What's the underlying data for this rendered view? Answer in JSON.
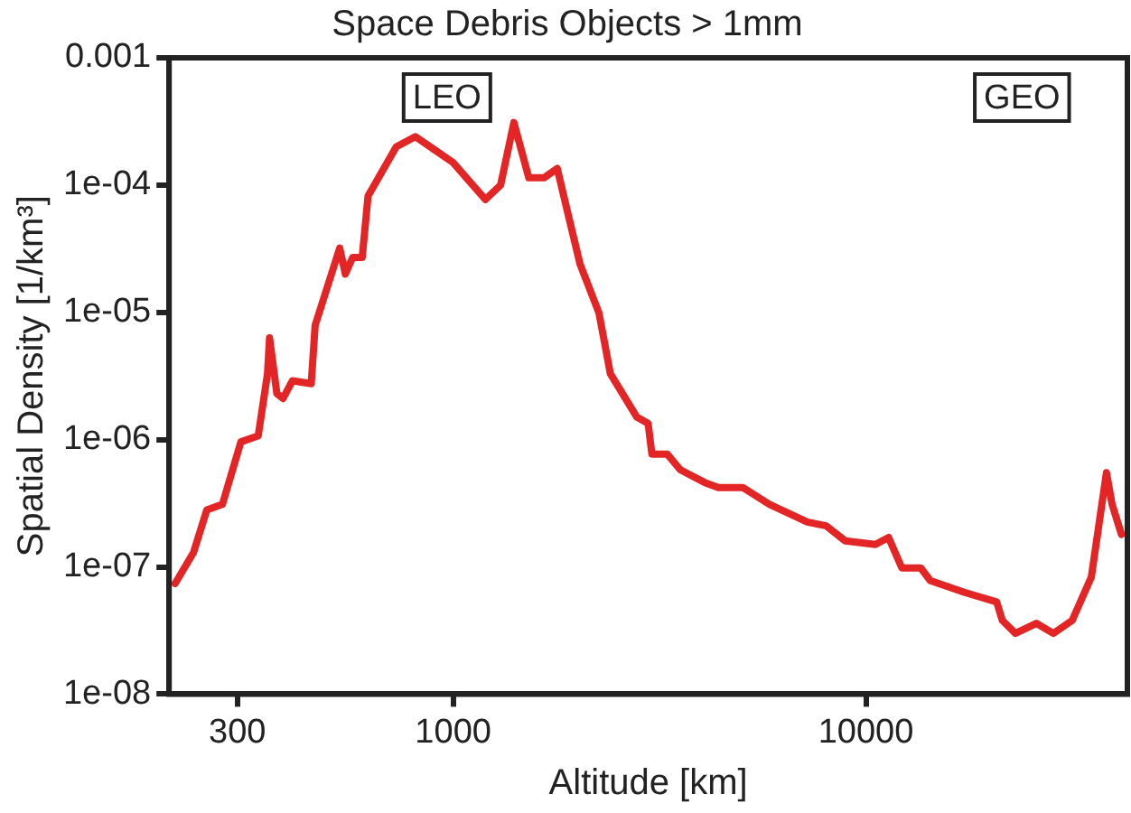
{
  "chart_data": {
    "type": "line",
    "title": "Space Debris Objects > 1mm",
    "xlabel": "Altitude [km]",
    "ylabel": "Spatial Density [1/km³]",
    "log": "xy",
    "grid": false,
    "legend": false,
    "marker": "none",
    "line_style": "solid",
    "xlim": [
      205,
      43000
    ],
    "xticks": [
      300,
      1000,
      10000
    ],
    "ylim": [
      1e-08,
      0.001
    ],
    "yticks": [
      0.001,
      {
        "value": 0.0001,
        "label": "1e-04"
      },
      {
        "value": 1e-05,
        "label": "1e-05"
      },
      {
        "value": 1e-06,
        "label": "1e-06"
      },
      {
        "value": 1e-07,
        "label": "1e-07"
      },
      {
        "value": 1e-08,
        "label": "1e-08"
      }
    ],
    "annotations": [
      "LEO",
      "GEO"
    ],
    "series": [
      {
        "color": "#e32526",
        "x": [
          212,
          235,
          253,
          276,
          306,
          337,
          355,
          359,
          374,
          387,
          408,
          453,
          463,
          531,
          548,
          571,
          602,
          622,
          728,
          810,
          900,
          1000,
          1197,
          1303,
          1403,
          1525,
          1660,
          1787,
          1885,
          2029,
          2255,
          2403,
          2787,
          2967,
          3030,
          3300,
          3550,
          4070,
          4390,
          5030,
          5840,
          7210,
          8010,
          8910,
          10540,
          11350,
          12220,
          13580,
          14320,
          17330,
          20740,
          21400,
          23020,
          25870,
          28440,
          31620,
          35160,
          38260,
          39480,
          41590
        ],
        "values": [
          7.4e-08,
          1.3e-07,
          2.8e-07,
          3.1e-07,
          9.6e-07,
          1.07e-06,
          3.3e-06,
          6.3e-06,
          2.3e-06,
          2.1e-06,
          2.9e-06,
          2.75e-06,
          7.9e-06,
          3.2e-05,
          2e-05,
          2.7e-05,
          2.7e-05,
          8.2e-05,
          0.0002,
          0.00024,
          0.00019,
          0.00015,
          7.7e-05,
          0.0001,
          0.00031,
          0.000114,
          0.000114,
          0.000135,
          6.5e-05,
          2.4e-05,
          9.9e-06,
          3.3e-06,
          1.5e-06,
          1.34e-06,
          7.7e-07,
          7.7e-07,
          5.8e-07,
          4.6e-07,
          4.2e-07,
          4.2e-07,
          3.1e-07,
          2.25e-07,
          2.1e-07,
          1.6e-07,
          1.5e-07,
          1.7e-07,
          9.8e-08,
          9.8e-08,
          7.8e-08,
          6.3e-08,
          5.3e-08,
          3.8e-08,
          3e-08,
          3.6e-08,
          3e-08,
          3.8e-08,
          8.3e-08,
          5.5e-07,
          3.1e-07,
          1.8e-07
        ]
      }
    ]
  }
}
